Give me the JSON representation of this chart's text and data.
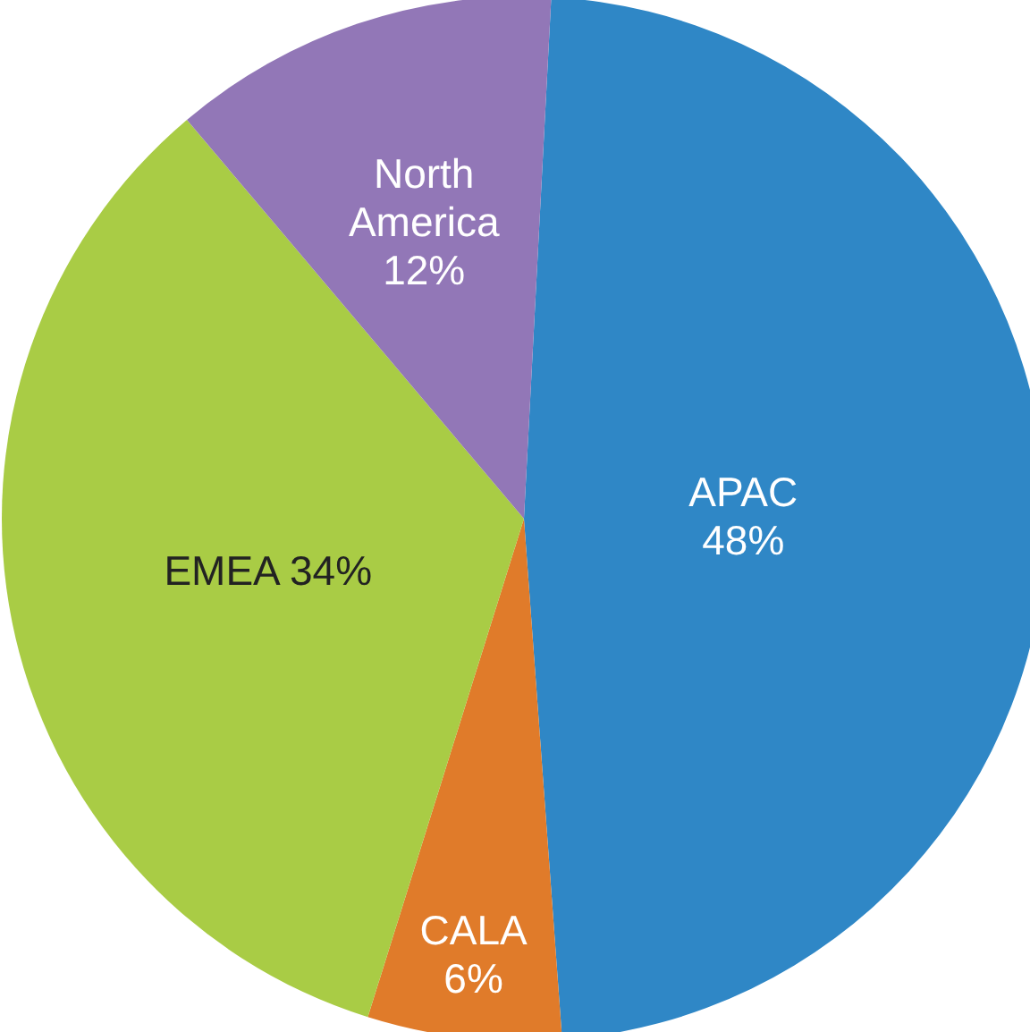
{
  "chart_data": {
    "type": "pie",
    "categories": [
      "APAC",
      "CALA",
      "EMEA",
      "North America"
    ],
    "values": [
      48,
      6,
      34,
      12
    ],
    "value_labels": [
      "48%",
      "6%",
      "34%",
      "12%"
    ],
    "colors": [
      "#2f87c6",
      "#e07b2a",
      "#a9cc45",
      "#9277b7"
    ]
  }
}
